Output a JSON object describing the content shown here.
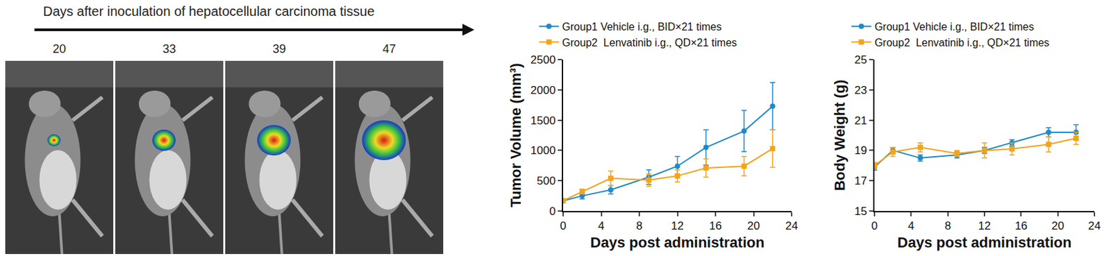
{
  "images_panel": {
    "title": "Days after inoculation of hepatocellular carcinoma tissue",
    "days": [
      20,
      33,
      39,
      47
    ]
  },
  "chart_data": [
    {
      "type": "line",
      "x_label": "Days post administration",
      "y_label": "Tumor Volume (mm³)",
      "x": [
        0,
        2,
        5,
        9,
        12,
        15,
        19,
        22
      ],
      "xlim": [
        0,
        24
      ],
      "xticks": [
        0,
        4,
        8,
        12,
        16,
        20,
        24
      ],
      "ylim": [
        0,
        2500
      ],
      "yticks": [
        0,
        500,
        1000,
        1500,
        2000,
        2500
      ],
      "grid": false,
      "legend": "top",
      "series": [
        {
          "name": "Group1 Vehicle i.g., BID×21 times",
          "color": "#1f8ac9",
          "marker": "circle",
          "line_style": "solid",
          "values": [
            170,
            250,
            350,
            560,
            740,
            1050,
            1320,
            1730
          ],
          "errors": [
            20,
            50,
            70,
            120,
            160,
            290,
            340,
            390
          ]
        },
        {
          "name": "Group2  Lenvatinib i.g., QD×21 times",
          "color": "#f5a31a",
          "marker": "square",
          "line_style": "solid",
          "values": [
            170,
            320,
            540,
            510,
            580,
            710,
            740,
            1030
          ],
          "errors": [
            20,
            40,
            120,
            100,
            100,
            150,
            160,
            310
          ]
        }
      ]
    },
    {
      "type": "line",
      "x_label": "Days post administration",
      "y_label": "Body Weight (g)",
      "x": [
        0,
        2,
        5,
        9,
        12,
        15,
        19,
        22
      ],
      "xlim": [
        0,
        24
      ],
      "xticks": [
        0,
        4,
        8,
        12,
        16,
        20,
        24
      ],
      "ylim": [
        15,
        25
      ],
      "yticks": [
        15,
        17,
        19,
        21,
        23,
        25
      ],
      "grid": false,
      "legend": "top",
      "series": [
        {
          "name": "Group1 Vehicle i.g., BID×21 times",
          "color": "#1f8ac9",
          "marker": "circle",
          "line_style": "solid",
          "values": [
            17.9,
            19.0,
            18.5,
            18.7,
            19.0,
            19.5,
            20.2,
            20.2
          ],
          "errors": [
            0.2,
            0.2,
            0.2,
            0.2,
            0.2,
            0.2,
            0.3,
            0.5
          ]
        },
        {
          "name": "Group2  Lenvatinib i.g., QD×21 times",
          "color": "#f5a31a",
          "marker": "square",
          "line_style": "solid",
          "values": [
            18.0,
            18.9,
            19.2,
            18.8,
            19.0,
            19.1,
            19.4,
            19.8
          ],
          "errors": [
            0.2,
            0.3,
            0.3,
            0.2,
            0.5,
            0.4,
            0.5,
            0.4
          ]
        }
      ]
    }
  ]
}
